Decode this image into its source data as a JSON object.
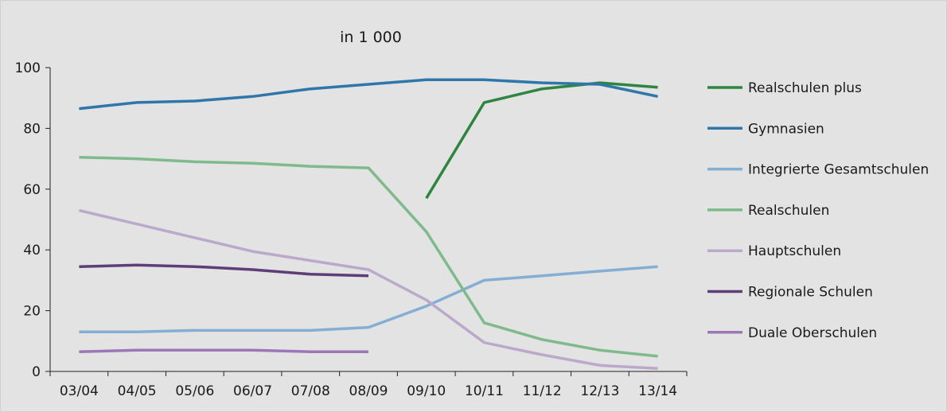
{
  "chart_data": {
    "type": "line",
    "title": "in 1 000",
    "xlabel": "",
    "ylabel": "",
    "ylim": [
      0,
      100
    ],
    "yticks": [
      "0",
      "20",
      "40",
      "60",
      "80",
      "100"
    ],
    "categories": [
      "03/04",
      "04/05",
      "05/06",
      "06/07",
      "07/08",
      "08/09",
      "09/10",
      "10/11",
      "11/12",
      "12/13",
      "13/14"
    ],
    "legend_position": "right",
    "grid": false,
    "series": [
      {
        "name": "Realschulen plus",
        "color": "#2e8540",
        "values": [
          null,
          null,
          null,
          null,
          null,
          null,
          57,
          88.5,
          93,
          95,
          93.5
        ]
      },
      {
        "name": "Gymnasien",
        "color": "#2f77aa",
        "values": [
          86.5,
          88.5,
          89,
          90.5,
          93,
          94.5,
          96,
          96,
          95,
          94.5,
          90.5
        ]
      },
      {
        "name": "Integrierte Gesamtschulen",
        "color": "#84aed3",
        "values": [
          13,
          13,
          13.5,
          13.5,
          13.5,
          14.5,
          21.5,
          30,
          31.5,
          33,
          34.5
        ]
      },
      {
        "name": "Realschulen",
        "color": "#7fba8c",
        "values": [
          70.5,
          70,
          69,
          68.5,
          67.5,
          67,
          46,
          16,
          10.5,
          7,
          5
        ]
      },
      {
        "name": "Hauptschulen",
        "color": "#bba9cc",
        "values": [
          53,
          48.5,
          44,
          39.5,
          36.5,
          33.5,
          23.5,
          9.5,
          5.5,
          2,
          1
        ]
      },
      {
        "name": "Regionale Schulen",
        "color": "#5e3d78",
        "values": [
          34.5,
          35,
          34.5,
          33.5,
          32,
          31.5,
          null,
          null,
          null,
          null,
          null
        ]
      },
      {
        "name": "Duale Oberschulen",
        "color": "#9c77b7",
        "values": [
          6.5,
          7,
          7,
          7,
          6.5,
          6.5,
          null,
          null,
          null,
          null,
          null
        ]
      }
    ]
  }
}
